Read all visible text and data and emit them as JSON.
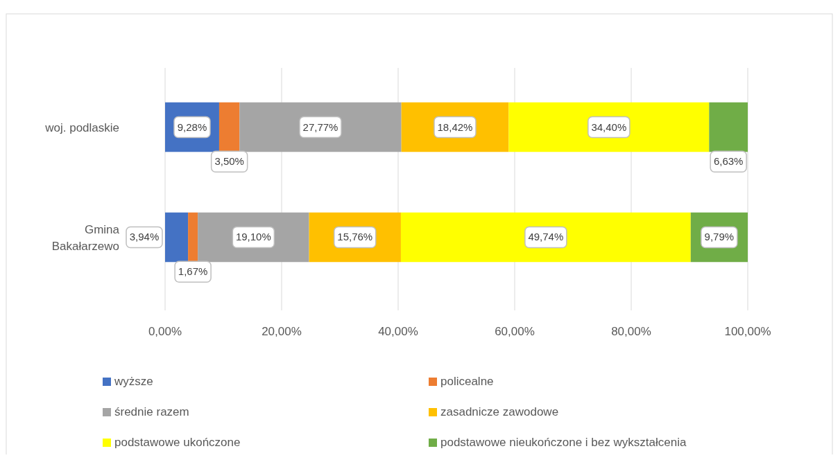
{
  "chart_data": {
    "type": "bar",
    "orientation": "horizontal",
    "stacked": true,
    "categories": [
      "woj. podlaskie",
      "Gmina Bakałarzewo"
    ],
    "series": [
      {
        "name": "wyższe",
        "color": "#4472c4",
        "values": [
          9.28,
          3.94
        ],
        "value_labels": [
          "9,28%",
          "3,94%"
        ]
      },
      {
        "name": "policealne",
        "color": "#ed7d31",
        "values": [
          3.5,
          1.67
        ],
        "value_labels": [
          "3,50%",
          "1,67%"
        ]
      },
      {
        "name": "średnie razem",
        "color": "#a5a5a5",
        "values": [
          27.77,
          19.1
        ],
        "value_labels": [
          "27,77%",
          "19,10%"
        ]
      },
      {
        "name": "zasadnicze zawodowe",
        "color": "#ffc000",
        "values": [
          18.42,
          15.76
        ],
        "value_labels": [
          "18,42%",
          "15,76%"
        ]
      },
      {
        "name": "podstawowe ukończone",
        "color": "#ffff00",
        "values": [
          34.4,
          49.74
        ],
        "value_labels": [
          "34,40%",
          "49,74%"
        ]
      },
      {
        "name": "podstawowe nieukończone i bez wykształcenia",
        "color": "#70ad47",
        "values": [
          6.63,
          9.79
        ],
        "value_labels": [
          "6,63%",
          "9,79%"
        ]
      }
    ],
    "xlim": [
      0,
      100
    ],
    "xticks": [
      {
        "value": 0,
        "label": "0,00%"
      },
      {
        "value": 20,
        "label": "20,00%"
      },
      {
        "value": 40,
        "label": "40,00%"
      },
      {
        "value": 60,
        "label": "60,00%"
      },
      {
        "value": 80,
        "label": "80,00%"
      },
      {
        "value": 100,
        "label": "100,00%"
      }
    ],
    "grid": "x",
    "legend": "bottom"
  }
}
